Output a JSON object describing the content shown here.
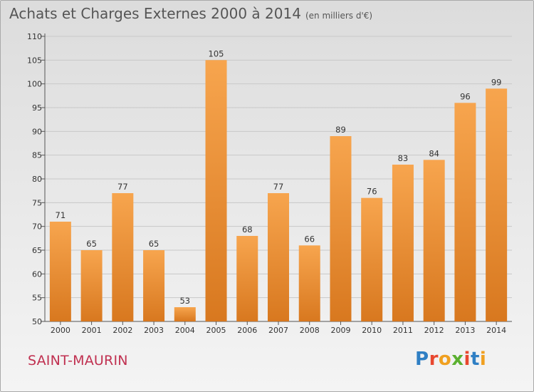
{
  "header": {
    "title": "Achats et Charges Externes 2000 à 2014",
    "unit": "(en milliers d'€)"
  },
  "footer": {
    "place": "SAINT-MAURIN",
    "brand": "Proxiti"
  },
  "colors": {
    "bar_light": "#f7a54e",
    "bar_dark": "#d8781f",
    "grid": "#c8c8c8",
    "place_name": "#c03050"
  },
  "chart_data": {
    "type": "bar",
    "title": "Achats et Charges Externes 2000 à 2014",
    "subtitle": "(en milliers d'€)",
    "xlabel": "",
    "ylabel": "",
    "categories": [
      "2000",
      "2001",
      "2002",
      "2003",
      "2004",
      "2005",
      "2006",
      "2007",
      "2008",
      "2009",
      "2010",
      "2011",
      "2012",
      "2013",
      "2014"
    ],
    "values": [
      71,
      65,
      77,
      65,
      53,
      105,
      68,
      77,
      66,
      89,
      76,
      83,
      84,
      96,
      99
    ],
    "ylim": [
      50,
      110
    ],
    "yticks": [
      50,
      55,
      60,
      65,
      70,
      75,
      80,
      85,
      90,
      95,
      100,
      105,
      110
    ],
    "grid": true,
    "legend": "none",
    "data_labels": true
  }
}
